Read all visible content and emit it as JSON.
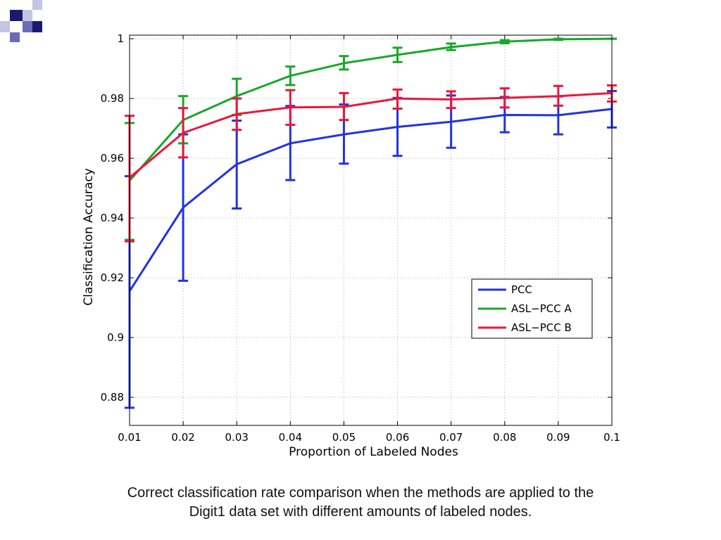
{
  "colors": {
    "logo_dark": "#1a1a6e",
    "logo_mid": "#6b6bb8",
    "logo_light": "#c4c4e4"
  },
  "chart_data": {
    "type": "line",
    "xlabel": "Proportion of Labeled Nodes",
    "ylabel": "Classification Accuracy",
    "x": [
      0.01,
      0.02,
      0.03,
      0.04,
      0.05,
      0.06,
      0.07,
      0.08,
      0.09,
      0.1
    ],
    "x_tick_labels": [
      "0.01",
      "0.02",
      "0.03",
      "0.04",
      "0.05",
      "0.06",
      "0.07",
      "0.08",
      "0.09",
      "0.1"
    ],
    "xlim": [
      0.01,
      0.1
    ],
    "ylim": [
      0.8706,
      1.0012
    ],
    "y_ticks": [
      0.88,
      0.9,
      0.92,
      0.94,
      0.96,
      0.98,
      1
    ],
    "y_tick_labels": [
      "0.88",
      "0.9",
      "0.92",
      "0.94",
      "0.96",
      "0.98",
      "1"
    ],
    "grid": true,
    "legend_position": "lower-right",
    "series": [
      {
        "name": "PCC",
        "color": "#2233dd",
        "values": [
          0.9155,
          0.9435,
          0.958,
          0.965,
          0.968,
          0.9705,
          0.9722,
          0.9745,
          0.9744,
          0.9765
        ],
        "error_low": [
          0.8765,
          0.919,
          0.9432,
          0.9527,
          0.9582,
          0.9608,
          0.9635,
          0.9687,
          0.968,
          0.9703
        ],
        "error_high": [
          0.954,
          0.968,
          0.9726,
          0.9775,
          0.978,
          0.9802,
          0.981,
          0.9805,
          0.9807,
          0.9825
        ]
      },
      {
        "name": "ASL−PCC A",
        "color": "#18a828",
        "values": [
          0.9525,
          0.9728,
          0.9808,
          0.9876,
          0.9918,
          0.9946,
          0.9972,
          0.999,
          0.9998,
          1.0
        ],
        "error_low": [
          0.9327,
          0.965,
          0.9745,
          0.9845,
          0.9897,
          0.9922,
          0.9962,
          0.9985,
          0.9996,
          1.0
        ],
        "error_high": [
          0.9718,
          0.9808,
          0.9866,
          0.9907,
          0.9942,
          0.997,
          0.9984,
          0.9995,
          1.0,
          1.0
        ]
      },
      {
        "name": "ASL−PCC B",
        "color": "#e8183c",
        "values": [
          0.9535,
          0.9685,
          0.9748,
          0.977,
          0.9772,
          0.98,
          0.9797,
          0.9802,
          0.9808,
          0.9818
        ],
        "error_low": [
          0.9322,
          0.9603,
          0.9695,
          0.9712,
          0.9728,
          0.9766,
          0.9768,
          0.977,
          0.9776,
          0.979
        ],
        "error_high": [
          0.9742,
          0.9768,
          0.98,
          0.9828,
          0.9818,
          0.983,
          0.9824,
          0.9834,
          0.9842,
          0.9844
        ]
      }
    ]
  },
  "caption": {
    "line1": "Correct classification rate comparison when the methods are applied to the",
    "line2": "Digit1 data set with different amounts of labeled nodes."
  }
}
